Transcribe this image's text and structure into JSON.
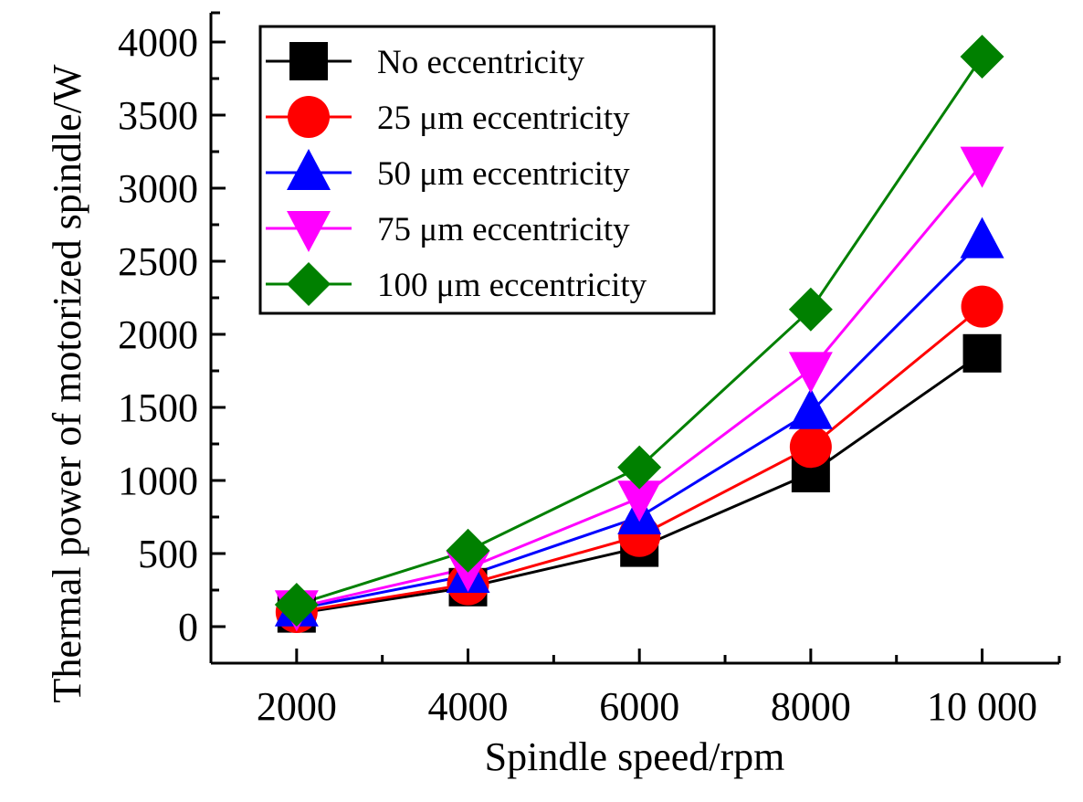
{
  "chart_data": {
    "type": "line",
    "title": "",
    "xlabel": "Spindle speed/rpm",
    "ylabel": "Thermal power of motorized spindle/W",
    "x": [
      2000,
      4000,
      6000,
      8000,
      10000
    ],
    "x_tick_labels": [
      "2000",
      "4000",
      "6000",
      "8000",
      "10000"
    ],
    "x_tick_display": [
      "2000",
      "4000",
      "6000",
      "8000",
      "10 000"
    ],
    "y_tick_labels": [
      "0",
      "500",
      "1000",
      "1500",
      "2000",
      "2500",
      "3000",
      "3500",
      "4000"
    ],
    "y_ticks": [
      0,
      500,
      1000,
      1500,
      2000,
      2500,
      3000,
      3500,
      4000
    ],
    "xlim": [
      1000,
      10900
    ],
    "ylim": [
      -250,
      4200
    ],
    "grid": false,
    "legend_position": "top-left",
    "series": [
      {
        "name": "No eccentricity",
        "color": "#000000",
        "marker": "square",
        "values": [
          90,
          270,
          540,
          1050,
          1870
        ]
      },
      {
        "name": "25 μm eccentricity",
        "color": "#ff0000",
        "marker": "circle",
        "values": [
          100,
          290,
          620,
          1230,
          2190
        ]
      },
      {
        "name": "50 μm eccentricity",
        "color": "#0000ff",
        "marker": "triangle-up",
        "values": [
          120,
          350,
          750,
          1470,
          2640
        ]
      },
      {
        "name": "75 μm eccentricity",
        "color": "#ff00ff",
        "marker": "triangle-down",
        "values": [
          130,
          400,
          880,
          1760,
          3165
        ]
      },
      {
        "name": "100 μm eccentricity",
        "color": "#008000",
        "marker": "diamond",
        "values": [
          150,
          520,
          1090,
          2170,
          3900
        ]
      }
    ]
  }
}
